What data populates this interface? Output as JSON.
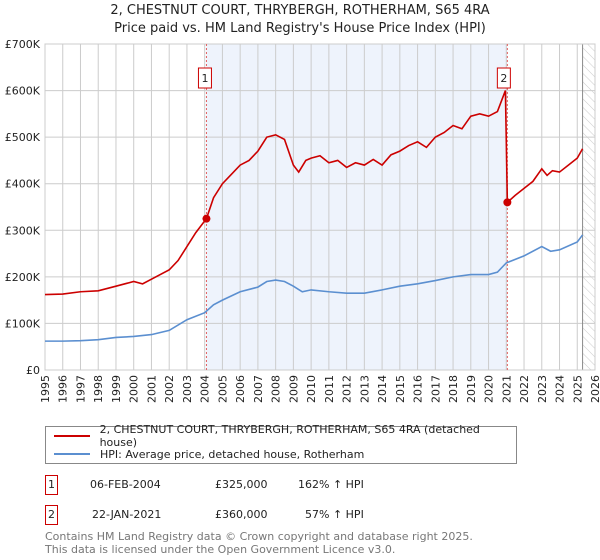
{
  "chart_data": {
    "type": "line",
    "title": "2, CHESTNUT COURT, THRYBERGH, ROTHERHAM, S65 4RA",
    "subtitle": "Price paid vs. HM Land Registry's House Price Index (HPI)",
    "xlim": [
      1995,
      2026
    ],
    "ylim": [
      0,
      700000
    ],
    "y_ticks": [
      {
        "v": 0,
        "label": "£0"
      },
      {
        "v": 100000,
        "label": "£100K"
      },
      {
        "v": 200000,
        "label": "£200K"
      },
      {
        "v": 300000,
        "label": "£300K"
      },
      {
        "v": 400000,
        "label": "£400K"
      },
      {
        "v": 500000,
        "label": "£500K"
      },
      {
        "v": 600000,
        "label": "£600K"
      },
      {
        "v": 700000,
        "label": "£700K"
      }
    ],
    "x_ticks": [
      "1995",
      "1996",
      "1997",
      "1998",
      "1999",
      "2000",
      "2001",
      "2002",
      "2003",
      "2004",
      "2005",
      "2006",
      "2007",
      "2008",
      "2009",
      "2010",
      "2011",
      "2012",
      "2013",
      "2014",
      "2015",
      "2016",
      "2017",
      "2018",
      "2019",
      "2020",
      "2021",
      "2022",
      "2023",
      "2024",
      "2025",
      "2026"
    ],
    "grid": true,
    "shaded_range": [
      2004.1,
      2021.06
    ],
    "hatched_from": 2025.3,
    "series": [
      {
        "name": "2, CHESTNUT COURT, THRYBERGH, ROTHERHAM, S65 4RA (detached house)",
        "color": "#cc0000",
        "x": [
          1995,
          1996,
          1997,
          1998,
          1999,
          2000,
          2000.5,
          2001,
          2002,
          2002.5,
          2003,
          2003.5,
          2003.8,
          2004.1,
          2004.5,
          2005,
          2005.5,
          2006,
          2006.5,
          2007,
          2007.5,
          2008,
          2008.5,
          2009,
          2009.3,
          2009.7,
          2010,
          2010.5,
          2011,
          2011.5,
          2012,
          2012.5,
          2013,
          2013.5,
          2014,
          2014.5,
          2015,
          2015.5,
          2016,
          2016.5,
          2017,
          2017.5,
          2018,
          2018.5,
          2019,
          2019.5,
          2020,
          2020.5,
          2020.95,
          2021.06,
          2021.5,
          2022,
          2022.5,
          2023,
          2023.3,
          2023.6,
          2024,
          2024.5,
          2025,
          2025.3
        ],
        "y": [
          162000,
          163000,
          168000,
          170000,
          180000,
          190000,
          185000,
          195000,
          215000,
          235000,
          265000,
          295000,
          310000,
          325000,
          370000,
          400000,
          420000,
          440000,
          450000,
          470000,
          500000,
          505000,
          495000,
          440000,
          425000,
          450000,
          455000,
          460000,
          445000,
          450000,
          435000,
          445000,
          440000,
          452000,
          440000,
          462000,
          470000,
          482000,
          490000,
          478000,
          500000,
          510000,
          525000,
          518000,
          545000,
          550000,
          545000,
          555000,
          600000,
          360000,
          375000,
          390000,
          405000,
          432000,
          418000,
          428000,
          425000,
          440000,
          455000,
          475000
        ]
      },
      {
        "name": "HPI: Average price, detached house, Rotherham",
        "color": "#5b8fd0",
        "x": [
          1995,
          1996,
          1997,
          1998,
          1999,
          2000,
          2001,
          2002,
          2003,
          2004,
          2004.5,
          2005,
          2006,
          2007,
          2007.5,
          2008,
          2008.5,
          2009,
          2009.5,
          2010,
          2011,
          2012,
          2013,
          2014,
          2015,
          2016,
          2017,
          2018,
          2019,
          2020,
          2020.5,
          2021,
          2022,
          2023,
          2023.5,
          2024,
          2025,
          2025.3
        ],
        "y": [
          62000,
          62000,
          63000,
          65000,
          70000,
          72000,
          76000,
          85000,
          108000,
          123000,
          140000,
          150000,
          168000,
          178000,
          190000,
          193000,
          190000,
          180000,
          168000,
          172000,
          168000,
          165000,
          165000,
          172000,
          180000,
          185000,
          192000,
          200000,
          205000,
          205000,
          210000,
          230000,
          245000,
          265000,
          255000,
          258000,
          275000,
          290000
        ]
      }
    ],
    "sales": [
      {
        "id": "1",
        "x": 2004.1,
        "y": 325000,
        "date": "06-FEB-2004",
        "price": "£325,000",
        "hpi": "162% ↑ HPI"
      },
      {
        "id": "2",
        "x": 2021.06,
        "y": 360000,
        "date": "22-JAN-2021",
        "price": "£360,000",
        "hpi": "57% ↑ HPI"
      }
    ]
  },
  "footer": {
    "line1": "Contains HM Land Registry data © Crown copyright and database right 2025.",
    "line2": "This data is licensed under the Open Government Licence v3.0."
  }
}
